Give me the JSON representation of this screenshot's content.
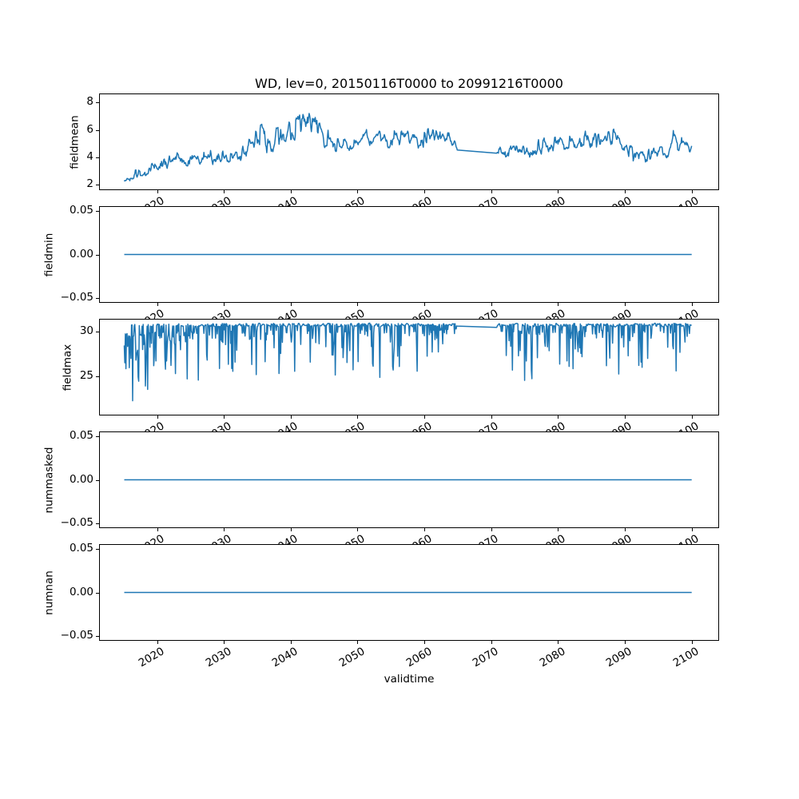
{
  "figure": {
    "background": "#ffffff",
    "frame_color": "#000000",
    "text_color": "#000000"
  },
  "chart_data": {
    "type": "line",
    "title": "WD, lev=0, 20150116T0000 to 20991216T0000",
    "xlabel": "validtime",
    "legend": "none",
    "grid": false,
    "line_color": "#1f77b4",
    "line_width": 1.5,
    "x_range_years": [
      2015.04,
      2099.96
    ],
    "gap_years": [
      2064.9,
      2070.75
    ],
    "points_per_year": 12,
    "x_ticks": [
      {
        "label": "2020",
        "year": 2020
      },
      {
        "label": "2030",
        "year": 2030
      },
      {
        "label": "2040",
        "year": 2040
      },
      {
        "label": "2050",
        "year": 2050
      },
      {
        "label": "2060",
        "year": 2060
      },
      {
        "label": "2070",
        "year": 2070
      },
      {
        "label": "2080",
        "year": 2080
      },
      {
        "label": "2090",
        "year": 2090
      },
      {
        "label": "2100",
        "year": 2100
      }
    ],
    "subplots": [
      {
        "ylabel": "fieldmean",
        "ylim": [
          1.65,
          8.6
        ],
        "yticks": [
          {
            "label": "8",
            "value": 8
          },
          {
            "label": "6",
            "value": 6
          },
          {
            "label": "4",
            "value": 4
          },
          {
            "label": "2",
            "value": 2
          }
        ],
        "series": {
          "kind": "noisy",
          "description": "mean wind direction index, noisy; rises from ~2.4 (2015) to peak ~8.2 (2042), relaxes to 4-6 band, data gap 2065-2071, ends ~4.7",
          "knots": [
            [
              2015.04,
              2.45,
              0.28
            ],
            [
              2016.5,
              2.75,
              0.3
            ],
            [
              2018,
              2.95,
              0.32
            ],
            [
              2020,
              3.3,
              0.45
            ],
            [
              2021.5,
              3.6,
              0.55
            ],
            [
              2023,
              3.75,
              0.5
            ],
            [
              2024.5,
              3.62,
              0.38
            ],
            [
              2026,
              3.7,
              0.4
            ],
            [
              2028,
              3.88,
              0.45
            ],
            [
              2030,
              4.0,
              0.5
            ],
            [
              2031.5,
              4.15,
              0.5
            ],
            [
              2033,
              4.55,
              0.5
            ],
            [
              2034.5,
              5.3,
              0.65
            ],
            [
              2035.5,
              5.75,
              0.75
            ],
            [
              2036.5,
              5.45,
              0.9
            ],
            [
              2037.5,
              5.3,
              0.95
            ],
            [
              2039,
              5.75,
              0.9
            ],
            [
              2040.5,
              6.1,
              0.95
            ],
            [
              2042,
              6.85,
              0.8
            ],
            [
              2043,
              6.5,
              0.85
            ],
            [
              2044,
              5.95,
              0.85
            ],
            [
              2045.5,
              5.35,
              0.8
            ],
            [
              2046.5,
              4.8,
              0.6
            ],
            [
              2047.5,
              4.9,
              0.5
            ],
            [
              2049,
              4.85,
              0.4
            ],
            [
              2050,
              4.75,
              0.38
            ],
            [
              2051,
              5.85,
              0.42
            ],
            [
              2052,
              5.25,
              0.4
            ],
            [
              2053.3,
              5.7,
              0.45
            ],
            [
              2054.5,
              4.95,
              0.38
            ],
            [
              2056,
              5.55,
              0.55
            ],
            [
              2057.3,
              5.5,
              0.5
            ],
            [
              2058.5,
              5.2,
              0.45
            ],
            [
              2059.5,
              5.0,
              0.42
            ],
            [
              2060.5,
              5.65,
              0.5
            ],
            [
              2062,
              5.45,
              0.45
            ],
            [
              2063.5,
              5.35,
              0.5
            ],
            [
              2064.5,
              5.0,
              0.3
            ],
            [
              2064.85,
              4.55,
              0.08
            ],
            [
              2070.8,
              4.25,
              0.08
            ],
            [
              2071.6,
              4.55,
              0.6
            ],
            [
              2073,
              4.3,
              0.5
            ],
            [
              2074.5,
              4.55,
              0.42
            ],
            [
              2076,
              4.5,
              0.45
            ],
            [
              2077.5,
              4.8,
              0.5
            ],
            [
              2079.3,
              5.25,
              0.55
            ],
            [
              2081,
              4.95,
              0.45
            ],
            [
              2083,
              5.15,
              0.5
            ],
            [
              2085,
              5.3,
              0.55
            ],
            [
              2086.7,
              5.55,
              0.6
            ],
            [
              2088.3,
              5.35,
              0.55
            ],
            [
              2090,
              4.55,
              0.5
            ],
            [
              2091.2,
              4.25,
              0.5
            ],
            [
              2092.5,
              4.4,
              0.45
            ],
            [
              2093.6,
              4.15,
              0.5
            ],
            [
              2095,
              4.5,
              0.45
            ],
            [
              2096.5,
              4.3,
              0.5
            ],
            [
              2097.2,
              5.45,
              0.6
            ],
            [
              2098,
              4.8,
              0.5
            ],
            [
              2099.2,
              5.1,
              0.5
            ],
            [
              2099.96,
              4.7,
              0.3
            ]
          ]
        }
      },
      {
        "ylabel": "fieldmin",
        "ylim": [
          -0.055,
          0.055
        ],
        "yticks": [
          {
            "label": "0.05",
            "value": 0.05
          },
          {
            "label": "0.00",
            "value": 0.0
          },
          {
            "label": "−0.05",
            "value": -0.05
          }
        ],
        "series": {
          "kind": "flat",
          "value": 0.0
        }
      },
      {
        "ylabel": "fieldmax",
        "ylim": [
          20.6,
          31.4
        ],
        "yticks": [
          {
            "label": "30",
            "value": 30
          },
          {
            "label": "25",
            "value": 25
          }
        ],
        "series": {
          "kind": "capped",
          "description": "max rides a cap ~30.8 with frequent needle dips; chaotic 22-31 during 2015-2020, deepest ~21.5 in 2016; data gap 2065-2071",
          "cap": 30.78,
          "cap_jitter": 0.22,
          "dip_knots": [
            [
              2015.04,
              0.95,
              8.6
            ],
            [
              2016.2,
              0.9,
              9.3
            ],
            [
              2017.5,
              0.7,
              8.0
            ],
            [
              2019,
              0.6,
              7.5
            ],
            [
              2021,
              0.55,
              7.2
            ],
            [
              2023,
              0.5,
              6.8
            ],
            [
              2025,
              0.45,
              6.5
            ],
            [
              2028,
              0.42,
              6.3
            ],
            [
              2031,
              0.38,
              6.0
            ],
            [
              2034,
              0.34,
              5.6
            ],
            [
              2038,
              0.32,
              5.4
            ],
            [
              2042,
              0.32,
              5.4
            ],
            [
              2045,
              0.32,
              7.4
            ],
            [
              2048,
              0.3,
              5.2
            ],
            [
              2052,
              0.3,
              5.4
            ],
            [
              2056,
              0.32,
              7.0
            ],
            [
              2060,
              0.3,
              5.4
            ],
            [
              2063.5,
              0.28,
              4.0
            ],
            [
              2064.85,
              0.15,
              1.5
            ],
            [
              2070.8,
              0.15,
              1.5
            ],
            [
              2071.8,
              0.35,
              6.8
            ],
            [
              2074,
              0.36,
              7.0
            ],
            [
              2077,
              0.32,
              5.6
            ],
            [
              2080,
              0.32,
              6.0
            ],
            [
              2084,
              0.32,
              6.6
            ],
            [
              2088,
              0.3,
              5.6
            ],
            [
              2092,
              0.3,
              6.0
            ],
            [
              2096,
              0.3,
              6.4
            ],
            [
              2099.96,
              0.3,
              5.5
            ]
          ]
        }
      },
      {
        "ylabel": "nummasked",
        "ylim": [
          -0.055,
          0.055
        ],
        "yticks": [
          {
            "label": "0.05",
            "value": 0.05
          },
          {
            "label": "0.00",
            "value": 0.0
          },
          {
            "label": "−0.05",
            "value": -0.05
          }
        ],
        "series": {
          "kind": "flat",
          "value": 0.0
        }
      },
      {
        "ylabel": "numnan",
        "ylim": [
          -0.055,
          0.055
        ],
        "yticks": [
          {
            "label": "0.05",
            "value": 0.05
          },
          {
            "label": "0.00",
            "value": 0.0
          },
          {
            "label": "−0.05",
            "value": -0.05
          }
        ],
        "series": {
          "kind": "flat",
          "value": 0.0
        }
      }
    ]
  }
}
